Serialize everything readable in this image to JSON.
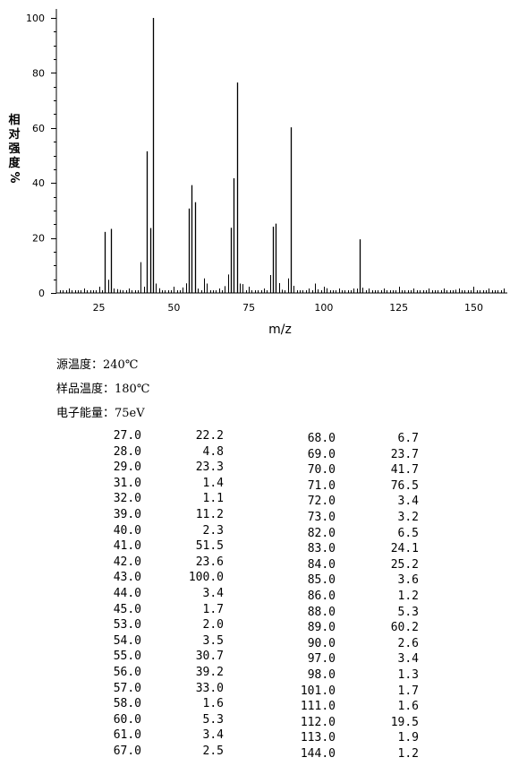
{
  "conditions": {
    "source_temp": "源温度：240℃",
    "sample_temp": "样品温度：180℃",
    "electron_energy": "电子能量：75eV"
  },
  "chart_data": {
    "type": "bar",
    "xlabel": "m/z",
    "ylabel": "相对强度 %",
    "ylabel_chars": [
      "相",
      "对",
      "强",
      "度",
      "%"
    ],
    "xlim": [
      12,
      160
    ],
    "ylim": [
      0,
      100
    ],
    "xticks": [
      25,
      50,
      75,
      100,
      125,
      150
    ],
    "yticks": [
      0,
      20,
      40,
      60,
      80,
      100
    ],
    "grid": false,
    "color": "#000000",
    "peaks": [
      {
        "mz": 27,
        "intensity": 22.2
      },
      {
        "mz": 28,
        "intensity": 4.8
      },
      {
        "mz": 29,
        "intensity": 23.3
      },
      {
        "mz": 31,
        "intensity": 1.4
      },
      {
        "mz": 32,
        "intensity": 1.1
      },
      {
        "mz": 39,
        "intensity": 11.2
      },
      {
        "mz": 40,
        "intensity": 2.3
      },
      {
        "mz": 41,
        "intensity": 51.5
      },
      {
        "mz": 42,
        "intensity": 23.6
      },
      {
        "mz": 43,
        "intensity": 100.0
      },
      {
        "mz": 44,
        "intensity": 3.4
      },
      {
        "mz": 45,
        "intensity": 1.7
      },
      {
        "mz": 53,
        "intensity": 2.0
      },
      {
        "mz": 54,
        "intensity": 3.5
      },
      {
        "mz": 55,
        "intensity": 30.7
      },
      {
        "mz": 56,
        "intensity": 39.2
      },
      {
        "mz": 57,
        "intensity": 33.0
      },
      {
        "mz": 58,
        "intensity": 1.6
      },
      {
        "mz": 60,
        "intensity": 5.3
      },
      {
        "mz": 61,
        "intensity": 3.4
      },
      {
        "mz": 67,
        "intensity": 2.5
      },
      {
        "mz": 68,
        "intensity": 6.7
      },
      {
        "mz": 69,
        "intensity": 23.7
      },
      {
        "mz": 70,
        "intensity": 41.7
      },
      {
        "mz": 71,
        "intensity": 76.5
      },
      {
        "mz": 72,
        "intensity": 3.4
      },
      {
        "mz": 73,
        "intensity": 3.2
      },
      {
        "mz": 82,
        "intensity": 6.5
      },
      {
        "mz": 83,
        "intensity": 24.1
      },
      {
        "mz": 84,
        "intensity": 25.2
      },
      {
        "mz": 85,
        "intensity": 3.6
      },
      {
        "mz": 86,
        "intensity": 1.2
      },
      {
        "mz": 88,
        "intensity": 5.3
      },
      {
        "mz": 89,
        "intensity": 60.2
      },
      {
        "mz": 90,
        "intensity": 2.6
      },
      {
        "mz": 97,
        "intensity": 3.4
      },
      {
        "mz": 98,
        "intensity": 1.3
      },
      {
        "mz": 101,
        "intensity": 1.7
      },
      {
        "mz": 111,
        "intensity": 1.6
      },
      {
        "mz": 112,
        "intensity": 19.5
      },
      {
        "mz": 113,
        "intensity": 1.9
      },
      {
        "mz": 144,
        "intensity": 1.2
      }
    ]
  },
  "peak_table": {
    "left": [
      [
        "27.0",
        "22.2"
      ],
      [
        "28.0",
        "4.8"
      ],
      [
        "29.0",
        "23.3"
      ],
      [
        "31.0",
        "1.4"
      ],
      [
        "32.0",
        "1.1"
      ],
      [
        "39.0",
        "11.2"
      ],
      [
        "40.0",
        "2.3"
      ],
      [
        "41.0",
        "51.5"
      ],
      [
        "42.0",
        "23.6"
      ],
      [
        "43.0",
        "100.0"
      ],
      [
        "44.0",
        "3.4"
      ],
      [
        "45.0",
        "1.7"
      ],
      [
        "53.0",
        "2.0"
      ],
      [
        "54.0",
        "3.5"
      ],
      [
        "55.0",
        "30.7"
      ],
      [
        "56.0",
        "39.2"
      ],
      [
        "57.0",
        "33.0"
      ],
      [
        "58.0",
        "1.6"
      ],
      [
        "60.0",
        "5.3"
      ],
      [
        "61.0",
        "3.4"
      ],
      [
        "67.0",
        "2.5"
      ]
    ],
    "right": [
      [
        "68.0",
        "6.7"
      ],
      [
        "69.0",
        "23.7"
      ],
      [
        "70.0",
        "41.7"
      ],
      [
        "71.0",
        "76.5"
      ],
      [
        "72.0",
        "3.4"
      ],
      [
        "73.0",
        "3.2"
      ],
      [
        "82.0",
        "6.5"
      ],
      [
        "83.0",
        "24.1"
      ],
      [
        "84.0",
        "25.2"
      ],
      [
        "85.0",
        "3.6"
      ],
      [
        "86.0",
        "1.2"
      ],
      [
        "88.0",
        "5.3"
      ],
      [
        "89.0",
        "60.2"
      ],
      [
        "90.0",
        "2.6"
      ],
      [
        "97.0",
        "3.4"
      ],
      [
        "98.0",
        "1.3"
      ],
      [
        "101.0",
        "1.7"
      ],
      [
        "111.0",
        "1.6"
      ],
      [
        "112.0",
        "19.5"
      ],
      [
        "113.0",
        "1.9"
      ],
      [
        "144.0",
        "1.2"
      ]
    ]
  }
}
